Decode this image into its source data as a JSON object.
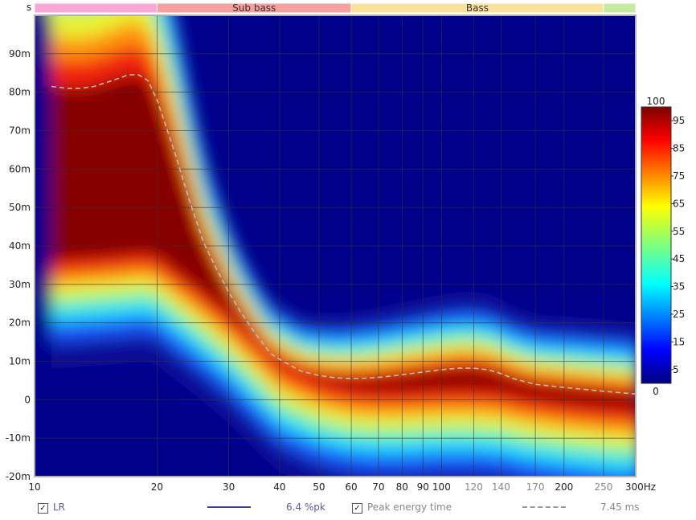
{
  "chart_data": {
    "type": "heatmap",
    "title": "",
    "y_unit_label": "s",
    "x_unit_suffix": "Hz",
    "x_scale": "log",
    "xlim": [
      10,
      300
    ],
    "ylim": [
      -0.02,
      0.1
    ],
    "x_ticks": [
      {
        "value": 10,
        "label": "10",
        "muted": false
      },
      {
        "value": 20,
        "label": "20",
        "muted": false
      },
      {
        "value": 30,
        "label": "30",
        "muted": false
      },
      {
        "value": 40,
        "label": "40",
        "muted": false
      },
      {
        "value": 50,
        "label": "50",
        "muted": false
      },
      {
        "value": 60,
        "label": "60",
        "muted": false
      },
      {
        "value": 70,
        "label": "70",
        "muted": false
      },
      {
        "value": 80,
        "label": "80",
        "muted": false
      },
      {
        "value": 90,
        "label": "90",
        "muted": false
      },
      {
        "value": 100,
        "label": "100",
        "muted": false
      },
      {
        "value": 120,
        "label": "120",
        "muted": true
      },
      {
        "value": 140,
        "label": "140",
        "muted": true
      },
      {
        "value": 170,
        "label": "170",
        "muted": true
      },
      {
        "value": 200,
        "label": "200",
        "muted": false
      },
      {
        "value": 250,
        "label": "250",
        "muted": true
      },
      {
        "value": 300,
        "label": "300Hz",
        "muted": false
      }
    ],
    "y_ticks": [
      {
        "value": 0.09,
        "label": "90m"
      },
      {
        "value": 0.08,
        "label": "80m"
      },
      {
        "value": 0.07,
        "label": "70m"
      },
      {
        "value": 0.06,
        "label": "60m"
      },
      {
        "value": 0.05,
        "label": "50m"
      },
      {
        "value": 0.04,
        "label": "40m"
      },
      {
        "value": 0.03,
        "label": "30m"
      },
      {
        "value": 0.02,
        "label": "20m"
      },
      {
        "value": 0.01,
        "label": "10m"
      },
      {
        "value": 0,
        "label": "0"
      },
      {
        "value": -0.01,
        "label": "-10m"
      },
      {
        "value": -0.02,
        "label": "-20m"
      }
    ],
    "bands": [
      {
        "label": "",
        "from": 10,
        "to": 20,
        "color": "#f7a8d8"
      },
      {
        "label": "Sub bass",
        "from": 20,
        "to": 60,
        "color": "#f7a0a0"
      },
      {
        "label": "Bass",
        "from": 60,
        "to": 250,
        "color": "#f9e29c"
      },
      {
        "label": "",
        "from": 250,
        "to": 300,
        "color": "#c6eba0"
      }
    ],
    "colorbar": {
      "min": 0,
      "max": 100,
      "ticks": [
        {
          "value": 100,
          "label": "100"
        },
        {
          "value": 95,
          "label": "95"
        },
        {
          "value": 85,
          "label": "85"
        },
        {
          "value": 75,
          "label": "75"
        },
        {
          "value": 65,
          "label": "65"
        },
        {
          "value": 55,
          "label": "55"
        },
        {
          "value": 45,
          "label": "45"
        },
        {
          "value": 35,
          "label": "35"
        },
        {
          "value": 25,
          "label": "25"
        },
        {
          "value": 15,
          "label": "15"
        },
        {
          "value": 5,
          "label": "5"
        },
        {
          "value": 0,
          "label": "0"
        }
      ]
    },
    "peak_energy_curve": {
      "name": "Peak energy time",
      "x": [
        11,
        12,
        13,
        14,
        15,
        16,
        17,
        18,
        19,
        20,
        22,
        24,
        26,
        28,
        30,
        32,
        35,
        38,
        40,
        45,
        50,
        55,
        60,
        65,
        70,
        80,
        90,
        100,
        110,
        120,
        130,
        140,
        150,
        170,
        200,
        250,
        300
      ],
      "y": [
        0.0815,
        0.081,
        0.081,
        0.0815,
        0.0825,
        0.0835,
        0.0845,
        0.0845,
        0.083,
        0.078,
        0.065,
        0.052,
        0.041,
        0.034,
        0.028,
        0.023,
        0.017,
        0.012,
        0.0105,
        0.0075,
        0.0063,
        0.0057,
        0.0055,
        0.0056,
        0.0058,
        0.0065,
        0.0072,
        0.0078,
        0.0082,
        0.0082,
        0.0078,
        0.0068,
        0.0055,
        0.004,
        0.0032,
        0.0022,
        0.0015
      ]
    },
    "ridge": {
      "x": [
        11,
        15,
        19,
        20,
        25,
        30,
        35,
        40,
        50,
        60,
        70,
        80,
        100,
        120,
        140,
        160,
        200,
        250,
        300
      ],
      "y": [
        0.04,
        0.041,
        0.042,
        0.041,
        0.033,
        0.026,
        0.019,
        0.013,
        0.0085,
        0.0065,
        0.006,
        0.006,
        0.0065,
        0.0065,
        0.006,
        0.0045,
        0.003,
        0.0018,
        0.0012
      ]
    },
    "legend": {
      "series_1_name": "LR",
      "series_1_color": "#3c3ca0",
      "series_1_value": "6.4 %pk",
      "series_1_checked": "✓",
      "series_2_name": "Peak energy time",
      "series_2_color": "#999999",
      "series_2_value": "7.45 ms",
      "series_2_checked": "✓"
    }
  }
}
